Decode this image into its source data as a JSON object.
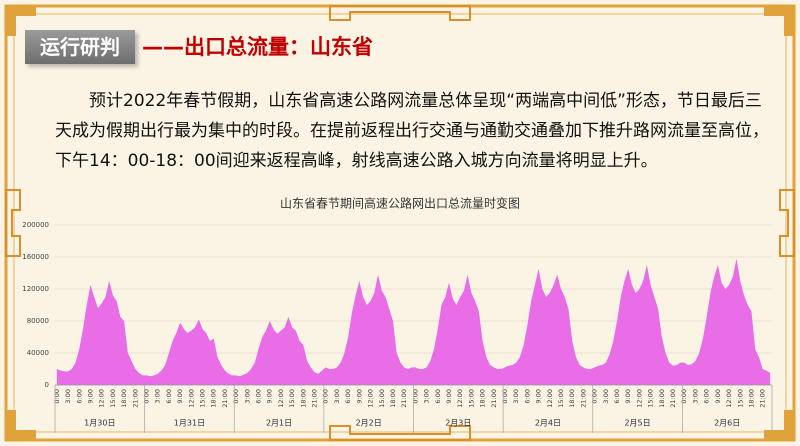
{
  "header": {
    "tag": "运行研判",
    "title": "——出口总流量：山东省"
  },
  "paragraph": "预计2022年春节假期，山东省高速公路网流量总体呈现“两端高中间低”形态，节日最后三天成为假期出行最为集中的时段。在提前返程出行交通与通勤交通叠加下推升路网流量至高位，下午14：00-18：00间迎来返程高峰，射线高速公路入城方向流量将明显上升。",
  "chart_data": {
    "type": "area",
    "title": "山东省春节期间高速公路网出口总流量时变图",
    "color": "#e86de6",
    "categories": [
      "0:00",
      null,
      null,
      "3:00",
      null,
      null,
      "6:00",
      null,
      null,
      "9:00",
      null,
      null,
      "12:00",
      null,
      null,
      "15:00",
      null,
      null,
      "18:00",
      null,
      null,
      "21:00",
      null,
      null,
      "0:00",
      null,
      null,
      "3:00",
      null,
      null,
      "6:00",
      null,
      null,
      "9:00",
      null,
      null,
      "12:00",
      null,
      null,
      "15:00",
      null,
      null,
      "18:00",
      null,
      null,
      "21:00",
      null,
      null,
      "0:00",
      null,
      null,
      "3:00",
      null,
      null,
      "6:00",
      null,
      null,
      "9:00",
      null,
      null,
      "12:00",
      null,
      null,
      "15:00",
      null,
      null,
      "18:00",
      null,
      null,
      "21:00",
      null,
      null,
      "0:00",
      null,
      null,
      "3:00",
      null,
      null,
      "6:00",
      null,
      null,
      "9:00",
      null,
      null,
      "12:00",
      null,
      null,
      "15:00",
      null,
      null,
      "18:00",
      null,
      null,
      "21:00",
      null,
      null,
      "0:00",
      null,
      null,
      "3:00",
      null,
      null,
      "6:00",
      null,
      null,
      "9:00",
      null,
      null,
      "12:00",
      null,
      null,
      "15:00",
      null,
      null,
      "18:00",
      null,
      null,
      "21:00",
      null,
      null,
      "0:00",
      null,
      null,
      "3:00",
      null,
      null,
      "6:00",
      null,
      null,
      "9:00",
      null,
      null,
      "12:00",
      null,
      null,
      "15:00",
      null,
      null,
      "18:00",
      null,
      null,
      "21:00",
      null,
      null,
      "0:00",
      null,
      null,
      "3:00",
      null,
      null,
      "6:00",
      null,
      null,
      "9:00",
      null,
      null,
      "12:00",
      null,
      null,
      "15:00",
      null,
      null,
      "18:00",
      null,
      null,
      "21:00",
      null,
      null,
      "0:00",
      null,
      null,
      "3:00",
      null,
      null,
      "6:00",
      null,
      null,
      "9:00",
      null,
      null,
      "12:00",
      null,
      null,
      "15:00",
      null,
      null,
      "18:00",
      null,
      null,
      "21:00",
      null,
      null
    ],
    "day_labels": [
      "1月30日",
      "1月31日",
      "2月1日",
      "2月2日",
      "2月3日",
      "2月4日",
      "2月5日",
      "2月6日"
    ],
    "values": [
      20000,
      18000,
      17000,
      17000,
      20000,
      28000,
      45000,
      70000,
      100000,
      125000,
      110000,
      96000,
      102000,
      110000,
      130000,
      112000,
      105000,
      85000,
      80000,
      40000,
      30000,
      20000,
      15000,
      12000,
      12000,
      11000,
      12000,
      14000,
      18000,
      25000,
      40000,
      55000,
      65000,
      78000,
      70000,
      65000,
      68000,
      72000,
      82000,
      70000,
      65000,
      55000,
      58000,
      35000,
      25000,
      18000,
      14000,
      12000,
      12000,
      11000,
      13000,
      15000,
      20000,
      28000,
      45000,
      60000,
      68000,
      80000,
      70000,
      64000,
      68000,
      72000,
      85000,
      72000,
      68000,
      55000,
      50000,
      30000,
      22000,
      16000,
      14000,
      18000,
      22000,
      20000,
      20000,
      22000,
      28000,
      40000,
      60000,
      90000,
      112000,
      130000,
      110000,
      100000,
      105000,
      115000,
      138000,
      118000,
      110000,
      95000,
      80000,
      40000,
      28000,
      22000,
      20000,
      22000,
      22000,
      20000,
      20000,
      22000,
      30000,
      45000,
      70000,
      100000,
      110000,
      128000,
      108000,
      100000,
      110000,
      118000,
      138000,
      115000,
      105000,
      92000,
      55000,
      35000,
      25000,
      22000,
      20000,
      20000,
      22000,
      24000,
      25000,
      28000,
      35000,
      50000,
      75000,
      105000,
      125000,
      145000,
      120000,
      110000,
      115000,
      125000,
      138000,
      120000,
      110000,
      95000,
      55000,
      35000,
      25000,
      22000,
      20000,
      20000,
      22000,
      24000,
      25000,
      28000,
      38000,
      55000,
      80000,
      110000,
      130000,
      145000,
      125000,
      115000,
      120000,
      130000,
      150000,
      125000,
      110000,
      95000,
      60000,
      40000,
      28000,
      24000,
      25000,
      28000,
      28000,
      25000,
      26000,
      30000,
      40000,
      58000,
      85000,
      115000,
      135000,
      150000,
      128000,
      120000,
      125000,
      135000,
      158000,
      130000,
      112000,
      100000,
      92000,
      45000,
      35000,
      20000,
      18000,
      15000
    ],
    "ylim": [
      0,
      200000
    ],
    "yticks": [
      0,
      40000,
      80000,
      120000,
      160000,
      200000
    ],
    "grid": true
  }
}
